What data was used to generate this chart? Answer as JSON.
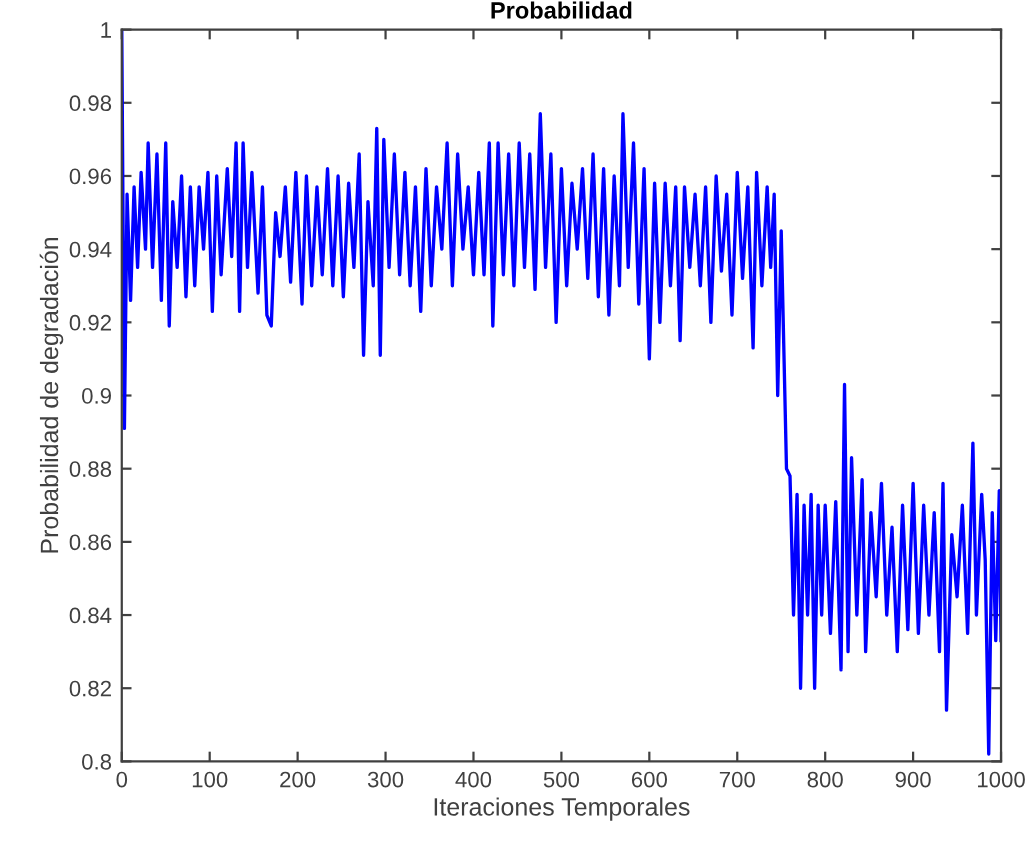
{
  "chart_data": {
    "type": "line",
    "title": "Probabilidad",
    "xlabel": "Iteraciones Temporales",
    "ylabel": "Probabilidad de degradación",
    "xlim": [
      0,
      1000
    ],
    "ylim": [
      0.8,
      1
    ],
    "xticks": [
      0,
      100,
      200,
      300,
      400,
      500,
      600,
      700,
      800,
      900,
      1000
    ],
    "yticks": [
      0.8,
      0.82,
      0.84,
      0.86,
      0.88,
      0.9,
      0.92,
      0.94,
      0.96,
      0.98,
      1
    ],
    "grid": false,
    "marker": "none",
    "line_style": "solid",
    "series": [
      {
        "color": "#0000ff",
        "x": [
          0,
          3,
          6,
          10,
          14,
          18,
          22,
          27,
          30,
          35,
          40,
          45,
          50,
          54,
          58,
          63,
          68,
          73,
          78,
          83,
          88,
          93,
          98,
          103,
          108,
          113,
          120,
          125,
          130,
          134,
          138,
          143,
          148,
          155,
          160,
          165,
          170,
          175,
          180,
          186,
          192,
          198,
          205,
          210,
          216,
          222,
          228,
          234,
          240,
          246,
          252,
          258,
          264,
          270,
          275,
          280,
          286,
          290,
          294,
          298,
          304,
          310,
          316,
          322,
          328,
          334,
          340,
          346,
          352,
          358,
          364,
          370,
          376,
          382,
          388,
          394,
          400,
          406,
          412,
          418,
          422,
          428,
          434,
          440,
          446,
          452,
          458,
          464,
          470,
          476,
          482,
          488,
          494,
          500,
          506,
          512,
          518,
          524,
          530,
          536,
          542,
          548,
          554,
          560,
          566,
          570,
          576,
          582,
          588,
          594,
          600,
          606,
          612,
          618,
          624,
          630,
          635,
          640,
          646,
          652,
          658,
          664,
          670,
          676,
          682,
          688,
          694,
          700,
          706,
          712,
          718,
          722,
          728,
          734,
          738,
          742,
          746,
          750,
          756,
          760,
          764,
          768,
          772,
          776,
          780,
          784,
          788,
          792,
          796,
          800,
          806,
          812,
          818,
          822,
          826,
          830,
          836,
          842,
          846,
          852,
          858,
          864,
          870,
          876,
          882,
          888,
          894,
          900,
          906,
          912,
          918,
          924,
          930,
          934,
          938,
          944,
          950,
          956,
          962,
          968,
          972,
          978,
          982,
          986,
          990,
          994,
          998,
          1000
        ],
        "values": [
          1.0,
          0.891,
          0.955,
          0.926,
          0.957,
          0.935,
          0.961,
          0.94,
          0.969,
          0.935,
          0.966,
          0.926,
          0.969,
          0.919,
          0.953,
          0.935,
          0.96,
          0.927,
          0.957,
          0.93,
          0.957,
          0.94,
          0.961,
          0.923,
          0.96,
          0.933,
          0.962,
          0.938,
          0.969,
          0.923,
          0.969,
          0.935,
          0.961,
          0.928,
          0.957,
          0.922,
          0.919,
          0.95,
          0.938,
          0.957,
          0.931,
          0.961,
          0.925,
          0.96,
          0.93,
          0.957,
          0.933,
          0.962,
          0.93,
          0.96,
          0.927,
          0.958,
          0.935,
          0.966,
          0.911,
          0.953,
          0.93,
          0.973,
          0.911,
          0.97,
          0.935,
          0.966,
          0.933,
          0.961,
          0.93,
          0.957,
          0.923,
          0.962,
          0.93,
          0.957,
          0.94,
          0.969,
          0.93,
          0.966,
          0.94,
          0.957,
          0.933,
          0.961,
          0.933,
          0.969,
          0.919,
          0.969,
          0.933,
          0.966,
          0.93,
          0.969,
          0.935,
          0.966,
          0.929,
          0.977,
          0.935,
          0.966,
          0.92,
          0.962,
          0.93,
          0.958,
          0.94,
          0.962,
          0.932,
          0.966,
          0.927,
          0.962,
          0.922,
          0.96,
          0.93,
          0.977,
          0.935,
          0.969,
          0.925,
          0.962,
          0.91,
          0.958,
          0.92,
          0.958,
          0.93,
          0.957,
          0.915,
          0.957,
          0.935,
          0.955,
          0.93,
          0.957,
          0.92,
          0.96,
          0.934,
          0.955,
          0.922,
          0.961,
          0.932,
          0.957,
          0.913,
          0.961,
          0.93,
          0.957,
          0.935,
          0.955,
          0.9,
          0.945,
          0.88,
          0.878,
          0.84,
          0.873,
          0.82,
          0.87,
          0.84,
          0.873,
          0.82,
          0.87,
          0.84,
          0.87,
          0.835,
          0.871,
          0.825,
          0.903,
          0.83,
          0.883,
          0.84,
          0.877,
          0.83,
          0.868,
          0.845,
          0.876,
          0.84,
          0.864,
          0.83,
          0.87,
          0.836,
          0.876,
          0.835,
          0.87,
          0.84,
          0.868,
          0.83,
          0.876,
          0.814,
          0.862,
          0.845,
          0.87,
          0.835,
          0.887,
          0.84,
          0.873,
          0.855,
          0.802,
          0.868,
          0.833,
          0.874,
          0.833
        ]
      }
    ]
  }
}
